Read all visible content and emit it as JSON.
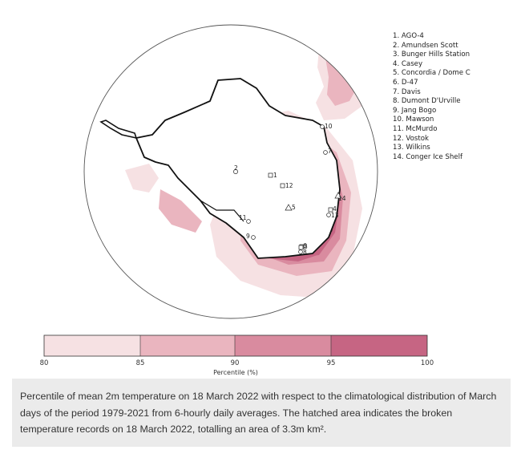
{
  "stations": [
    "1. AGO-4",
    "2. Amundsen Scott",
    "3. Bunger Hills Station",
    "4. Casey",
    "5. Concordia / Dome C",
    "6. D-47",
    "7. Davis",
    "8. Dumont D'Urville",
    "9. Jang Bogo",
    "10. Mawson",
    "11. McMurdo",
    "12. Vostok",
    "13. Wilkins",
    "14. Conger Ice Shelf"
  ],
  "map_markers": [
    "1",
    "2",
    "3",
    "4",
    "5",
    "6",
    "7",
    "8",
    "9",
    "10",
    "11",
    "12",
    "13",
    "14"
  ],
  "colorbar": {
    "ticks": [
      "80",
      "85",
      "90",
      "95",
      "100"
    ],
    "label": "Percentile (%)",
    "colors": [
      "#f6e1e3",
      "#eab5bf",
      "#d98b9f",
      "#c66583"
    ]
  },
  "colors": {
    "shade_light": "#f6e1e3",
    "shade_medium": "#eab5bf",
    "shade_dark": "#d98b9f",
    "shade_darkest": "#c66583",
    "caption_bg": "#ebebeb"
  },
  "caption": "Percentile of mean 2m temperature on 18 March 2022 with respect to the climatological distribution of March days of the period 1979-2021 from 6-hourly daily averages. The hatched area indicates the broken temperature records on 18 March 2022, totalling an area of 3.3m km²."
}
